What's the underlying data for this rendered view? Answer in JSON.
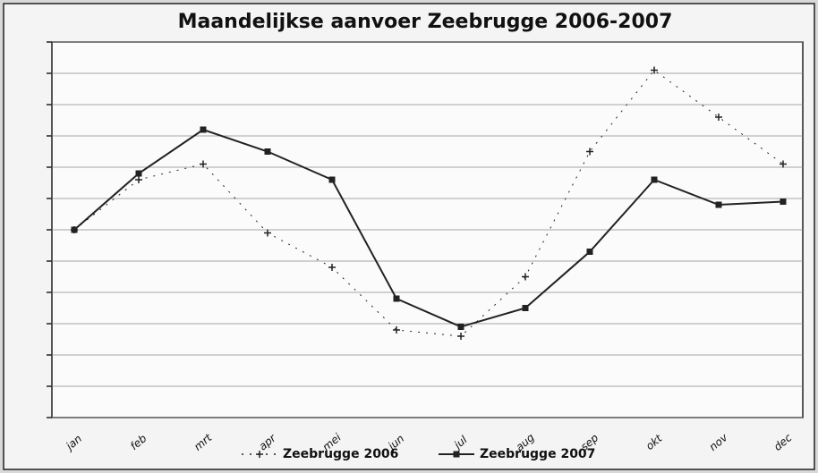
{
  "chart_data": {
    "type": "line",
    "title": "Maandelijkse aanvoer Zeebrugge 2006-2007",
    "categories": [
      "jan",
      "feb",
      "mrt",
      "apr",
      "mei",
      "jun",
      "jul",
      "aug",
      "sep",
      "okt",
      "nov",
      "dec"
    ],
    "series": [
      {
        "name": "Zeebrugge 2006",
        "color": "#222222",
        "dashed": true,
        "values": [
          6.0,
          7.6,
          8.1,
          5.9,
          4.8,
          2.8,
          2.6,
          4.5,
          8.5,
          11.1,
          9.6,
          8.1
        ]
      },
      {
        "name": "Zeebrugge 2007",
        "color": "#222222",
        "dashed": false,
        "values": [
          6.0,
          7.8,
          9.2,
          8.5,
          7.6,
          3.8,
          2.9,
          3.5,
          5.3,
          7.6,
          6.8,
          6.9
        ]
      }
    ],
    "ylim": [
      0,
      12
    ],
    "yticks": [
      0,
      1,
      2,
      3,
      4,
      5,
      6,
      7,
      8,
      9,
      10,
      11,
      12
    ],
    "grid": true
  }
}
